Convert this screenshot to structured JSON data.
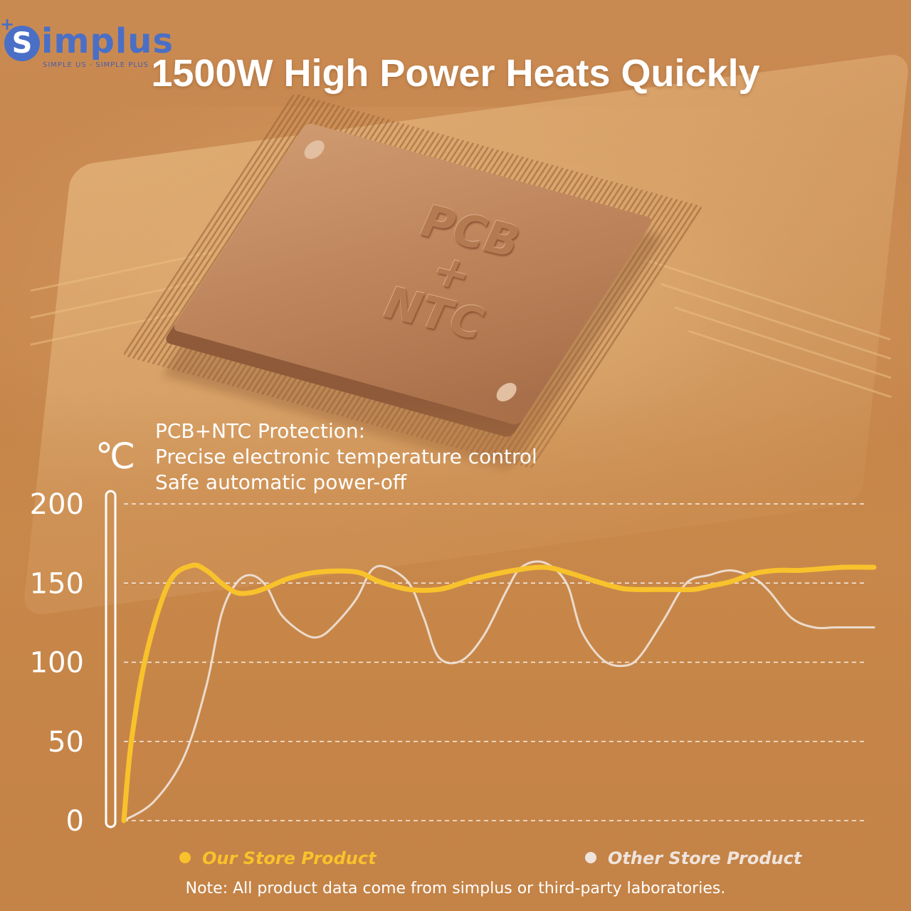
{
  "brand": {
    "name": "implus",
    "mark_letter": "S",
    "tagline": "SIMPLE US · SIMPLE PLUS"
  },
  "title": "1500W High Power Heats Quickly",
  "chip_label": {
    "line1": "PCB",
    "line2": "+",
    "line3": "NTC"
  },
  "description": {
    "line1": "PCB+NTC Protection:",
    "line2": "Precise electronic temperature control",
    "line3": "Safe automatic power-off"
  },
  "colors": {
    "ours": "#f8c22c",
    "others": "#efe4dc",
    "grid": "#ffffff",
    "text": "#ffffff",
    "brand": "#4a6fc6"
  },
  "footer_note": "Note:  All product data come from simplus or  third-party laboratories.",
  "chart_data": {
    "type": "line",
    "title": "",
    "xlabel": "",
    "ylabel": "℃",
    "ylim": [
      0,
      200
    ],
    "yticks": [
      0,
      50,
      100,
      150,
      200
    ],
    "xlim": [
      0,
      1
    ],
    "grid": true,
    "series": [
      {
        "name": "Our Store Product",
        "color": "#f8c22c",
        "x": [
          0,
          0.01,
          0.03,
          0.06,
          0.09,
          0.11,
          0.13,
          0.15,
          0.17,
          0.19,
          0.22,
          0.26,
          0.31,
          0.34,
          0.38,
          0.42,
          0.45,
          0.47,
          0.52,
          0.56,
          0.59,
          0.63,
          0.66,
          0.68,
          0.72,
          0.76,
          0.78,
          0.81,
          0.84,
          0.87,
          0.9,
          0.93,
          0.96,
          1.0
        ],
        "values": [
          0,
          50,
          105,
          150,
          161,
          158,
          150,
          144,
          144,
          147,
          153,
          157,
          157,
          151,
          146,
          146,
          150,
          153,
          158,
          160,
          157,
          151,
          147,
          146,
          146,
          146,
          148,
          151,
          156,
          158,
          158,
          159,
          160,
          160
        ]
      },
      {
        "name": "Other Store Product",
        "color": "#efe4dc",
        "x": [
          0,
          0.04,
          0.08,
          0.11,
          0.13,
          0.15,
          0.17,
          0.19,
          0.21,
          0.24,
          0.26,
          0.28,
          0.31,
          0.33,
          0.35,
          0.38,
          0.4,
          0.42,
          0.45,
          0.48,
          0.51,
          0.53,
          0.56,
          0.59,
          0.61,
          0.64,
          0.67,
          0.69,
          0.72,
          0.75,
          0.78,
          0.81,
          0.84,
          0.86,
          0.89,
          0.92,
          0.95,
          1.0
        ],
        "values": [
          0,
          12,
          40,
          85,
          130,
          150,
          155,
          148,
          130,
          118,
          116,
          123,
          140,
          158,
          160,
          150,
          128,
          103,
          101,
          117,
          145,
          160,
          163,
          150,
          120,
          101,
          98,
          105,
          127,
          150,
          155,
          158,
          153,
          145,
          128,
          122,
          122,
          122
        ]
      }
    ]
  }
}
